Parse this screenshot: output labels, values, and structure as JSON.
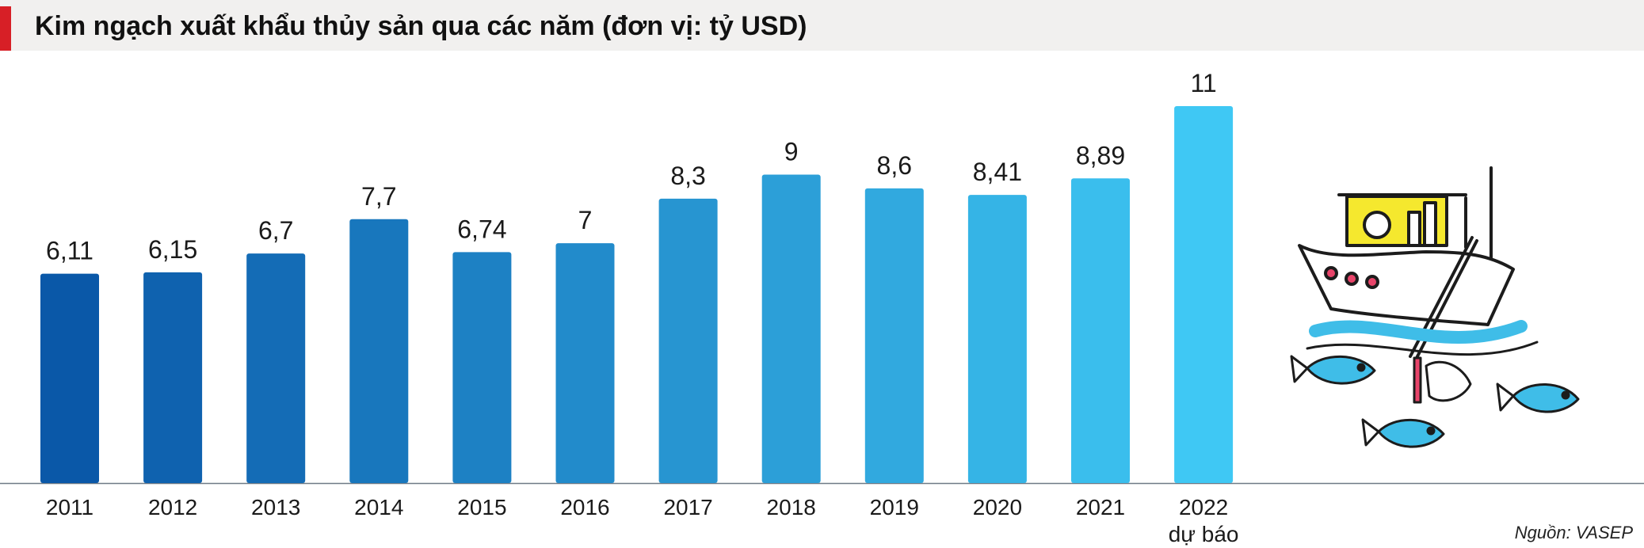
{
  "header": {
    "title": "Kim ngạch xuất khẩu thủy sản qua các năm (đơn vị: tỷ USD)"
  },
  "source": "Nguồn: VASEP",
  "colors": {
    "accent": "#d71f26",
    "header_bg": "#f1f0ef",
    "bar_start": "#0a58a8",
    "bar_end": "#3fc8f4"
  },
  "illustration": {
    "name": "fishing-boat-illustration"
  },
  "chart_data": {
    "type": "bar",
    "title": "Kim ngạch xuất khẩu thủy sản qua các năm (đơn vị: tỷ USD)",
    "categories": [
      "2011",
      "2012",
      "2013",
      "2014",
      "2015",
      "2016",
      "2017",
      "2018",
      "2019",
      "2020",
      "2021",
      "2022"
    ],
    "category_sublabels": [
      "",
      "",
      "",
      "",
      "",
      "",
      "",
      "",
      "",
      "",
      "",
      "dự báo"
    ],
    "values": [
      6.11,
      6.15,
      6.7,
      7.7,
      6.74,
      7,
      8.3,
      9,
      8.6,
      8.41,
      8.89,
      11
    ],
    "value_labels": [
      "6,11",
      "6,15",
      "6,7",
      "7,7",
      "6,74",
      "7",
      "8,3",
      "9",
      "8,6",
      "8,41",
      "8,89",
      "11"
    ],
    "ylim": [
      0,
      11
    ],
    "grid": false,
    "legend": "none"
  }
}
